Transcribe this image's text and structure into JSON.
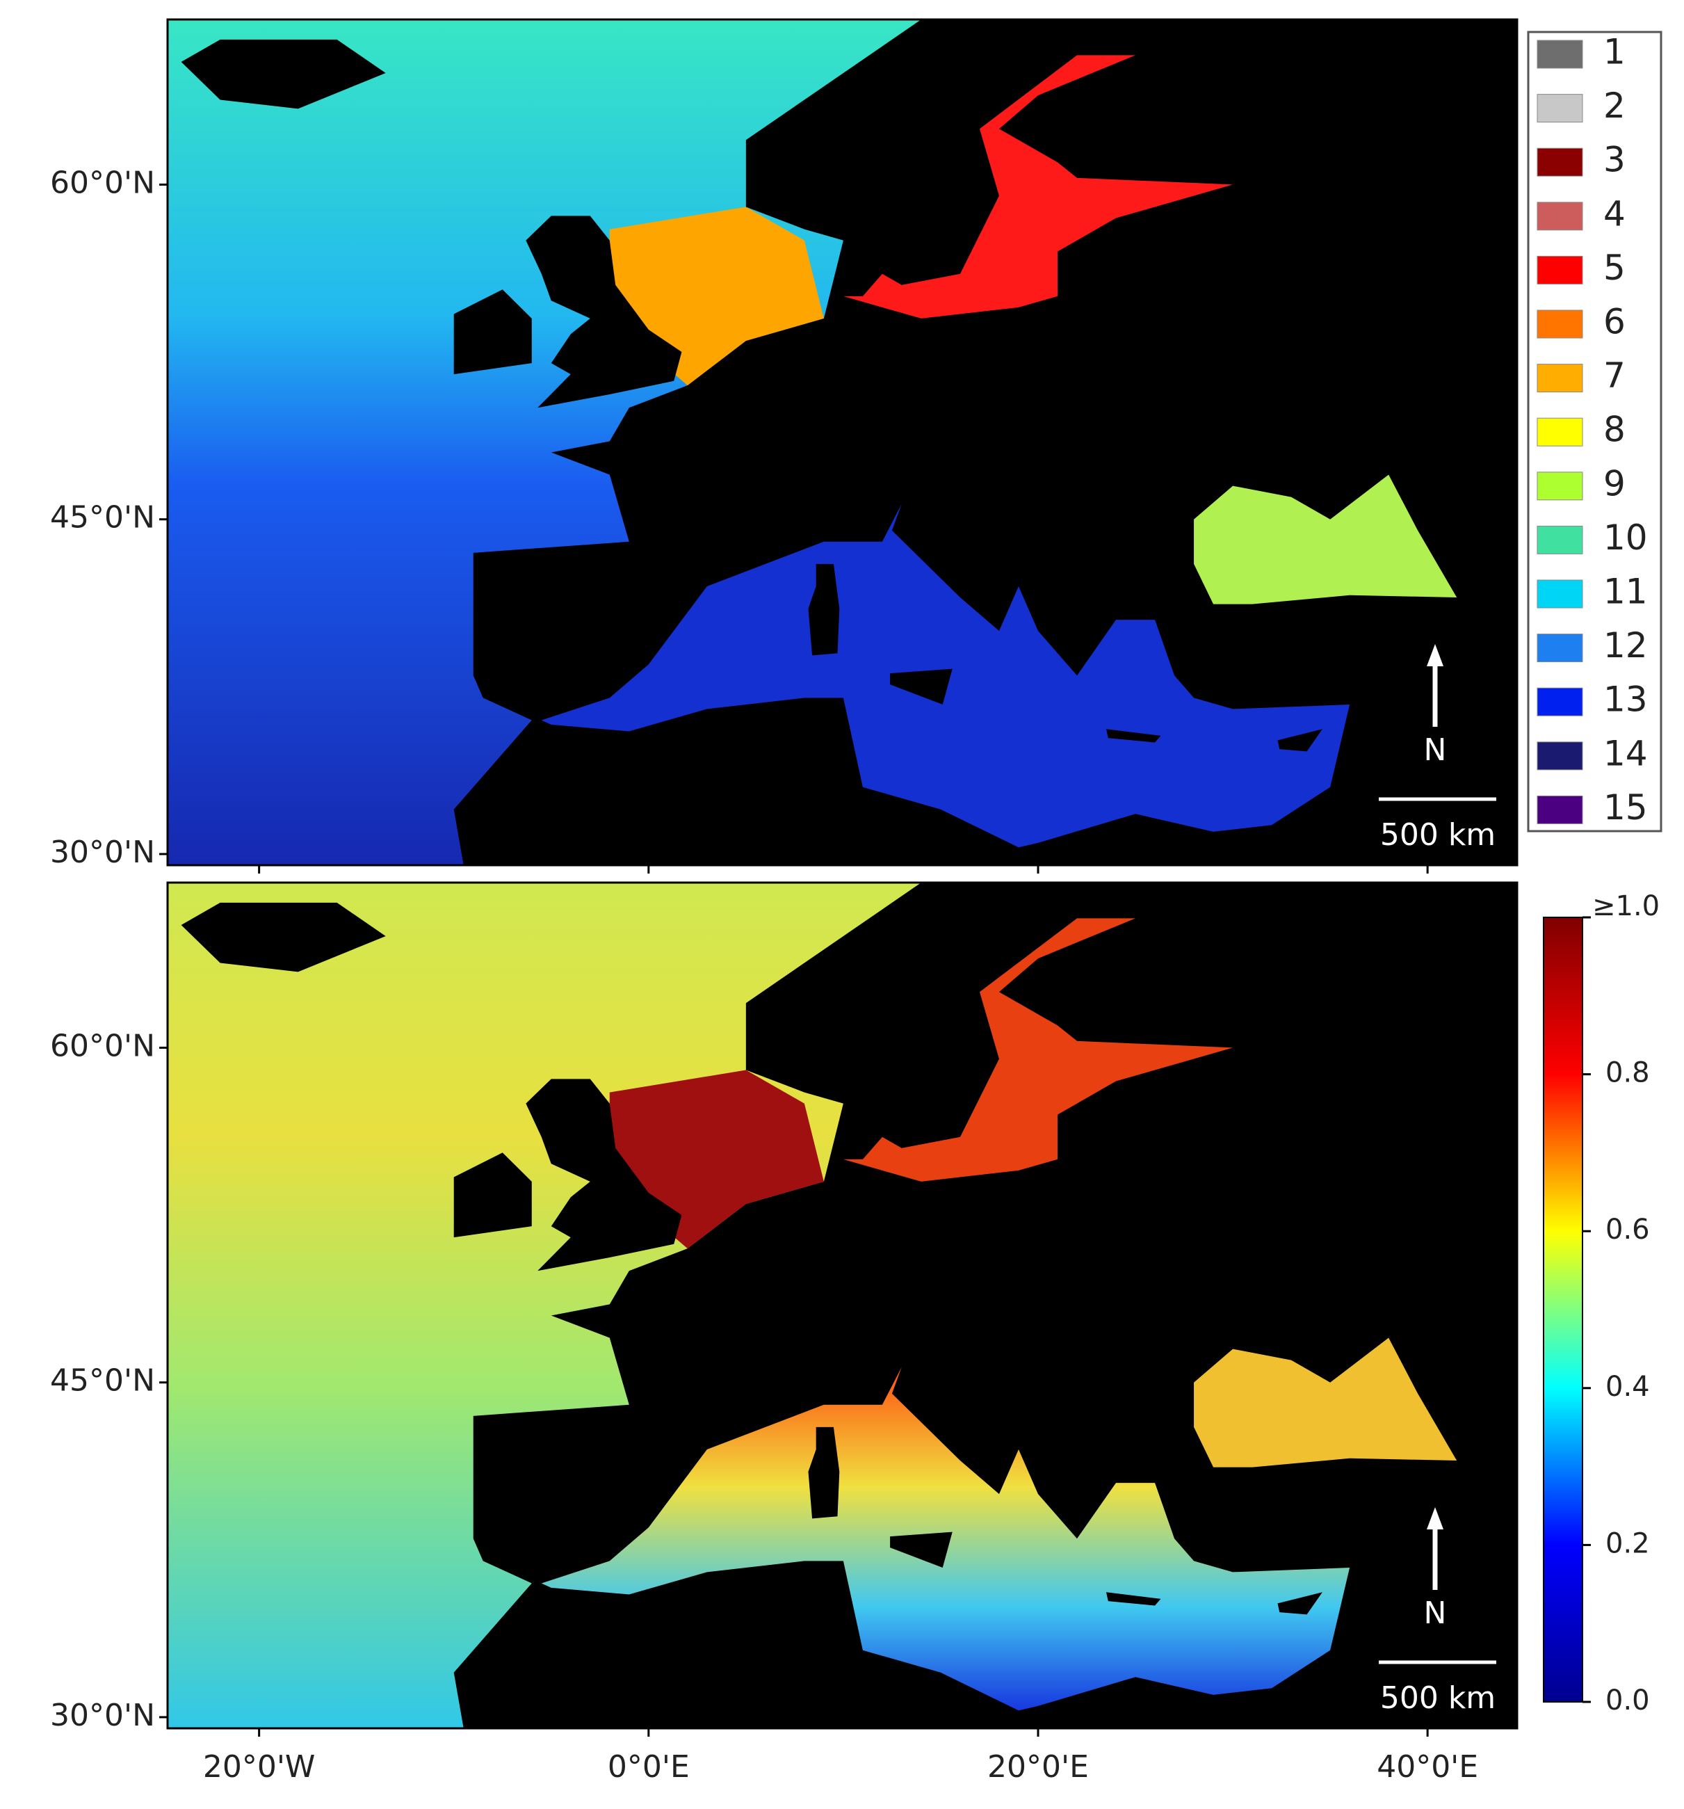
{
  "map": {
    "lat_range": [
      29.5,
      67.4
    ],
    "lon_range": [
      -24.7,
      44.6
    ],
    "lat_ticks": [
      {
        "value": 60,
        "label": "60°0'N"
      },
      {
        "value": 45,
        "label": "45°0'N"
      },
      {
        "value": 30,
        "label": "30°0'N"
      }
    ],
    "lon_ticks": [
      {
        "value": -20,
        "label": "20°0'W"
      },
      {
        "value": 0,
        "label": "0°0'E"
      },
      {
        "value": 20,
        "label": "20°0'E"
      },
      {
        "value": 40,
        "label": "40°0'E"
      }
    ],
    "north_label": "N",
    "scale_label": "500 km"
  },
  "legend": [
    {
      "label": "1",
      "color": "#6e6e6e"
    },
    {
      "label": "2",
      "color": "#c8c8c8"
    },
    {
      "label": "3",
      "color": "#8b0000"
    },
    {
      "label": "4",
      "color": "#cd5c5c"
    },
    {
      "label": "5",
      "color": "#ff0000"
    },
    {
      "label": "6",
      "color": "#ff7500"
    },
    {
      "label": "7",
      "color": "#ffad00"
    },
    {
      "label": "8",
      "color": "#ffff00"
    },
    {
      "label": "9",
      "color": "#adff2f"
    },
    {
      "label": "10",
      "color": "#40e0a0"
    },
    {
      "label": "11",
      "color": "#00d5f5"
    },
    {
      "label": "12",
      "color": "#1e80f0"
    },
    {
      "label": "13",
      "color": "#0020f0"
    },
    {
      "label": "14",
      "color": "#1a1a70"
    },
    {
      "label": "15",
      "color": "#4b0082"
    }
  ],
  "colorbar": {
    "range": [
      0,
      1
    ],
    "max_label": "≥1.0",
    "colormap": [
      "#00008f",
      "#0000ff",
      "#00ffff",
      "#ffff00",
      "#ff0000",
      "#800000"
    ],
    "ticks": [
      {
        "value": 0,
        "label": "0.0"
      },
      {
        "value": 0.2,
        "label": "0.2"
      },
      {
        "value": 0.4,
        "label": "0.4"
      },
      {
        "value": 0.6,
        "label": "0.6"
      },
      {
        "value": 0.8,
        "label": "0.8"
      }
    ]
  }
}
